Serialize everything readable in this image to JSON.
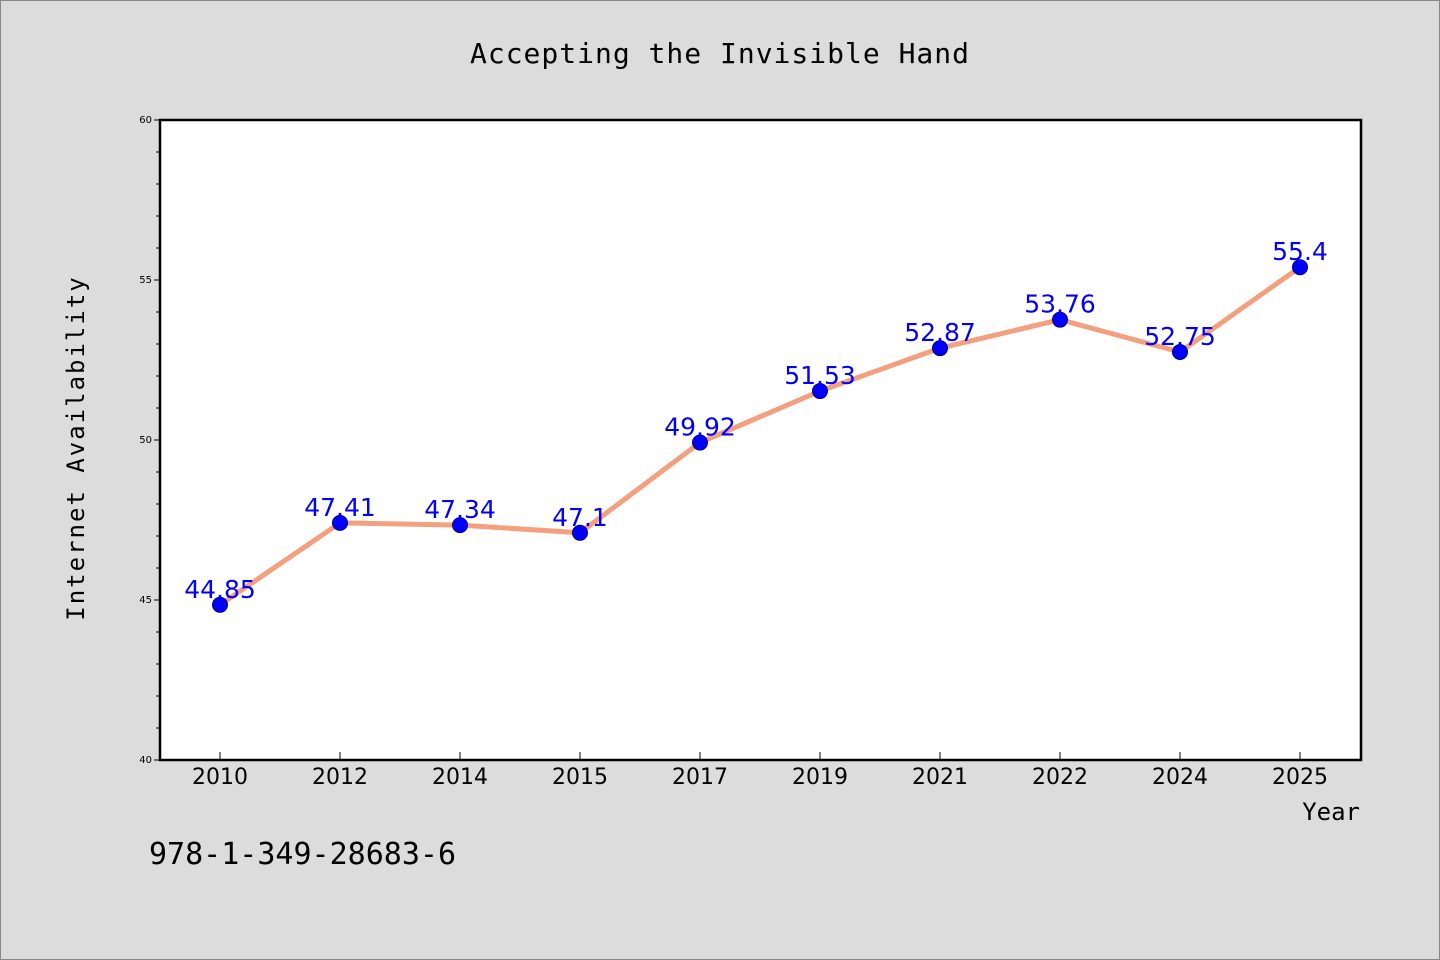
{
  "chart_data": {
    "type": "line",
    "title": "Accepting the Invisible Hand",
    "xlabel": "Year",
    "ylabel": "Internet Availability",
    "categories": [
      "2010",
      "2012",
      "2014",
      "2015",
      "2017",
      "2019",
      "2021",
      "2022",
      "2024",
      "2025"
    ],
    "series": [
      {
        "values": [
          44.85,
          47.41,
          47.34,
          47.1,
          49.92,
          51.53,
          52.87,
          53.76,
          52.75,
          55.4
        ],
        "labels": [
          "44.85",
          "47.41",
          "47.34",
          "47.1",
          "49.92",
          "51.53",
          "52.87",
          "53.76",
          "52.75",
          "55.4"
        ]
      }
    ],
    "ylim": [
      40,
      60
    ],
    "yticks": [
      "40",
      "45",
      "50",
      "55",
      "60"
    ],
    "grid": false,
    "legend": "none",
    "colors": {
      "line": "#f4a07f",
      "marker": "#0000ff",
      "marker_edge": "#00008b",
      "data_label": "#0000ff",
      "background": "#dcdcdc",
      "plot_background": "#ffffff"
    }
  },
  "footer": {
    "code": "978-1-349-28683-6"
  }
}
